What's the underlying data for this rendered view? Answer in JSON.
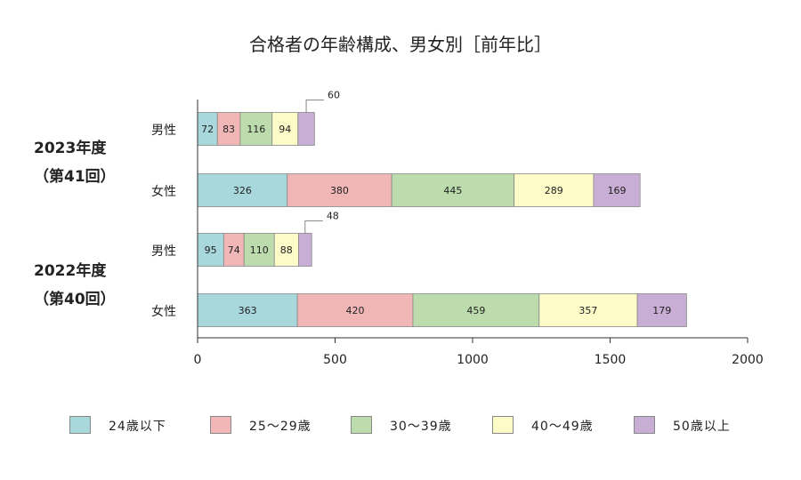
{
  "colors": {
    "axis": "#333333",
    "bar_border": "#888888",
    "text": "#222222"
  },
  "chart_data": {
    "type": "bar",
    "orientation": "horizontal",
    "stacked": true,
    "title": "合格者の年齢構成、男女別［前年比］",
    "xlim": [
      0,
      2000
    ],
    "xticks": [
      0,
      500,
      1000,
      1500,
      2000
    ],
    "grid": false,
    "legend_position": "bottom",
    "groups": [
      {
        "label": "2023年度",
        "sub": "（第41回）"
      },
      {
        "label": "2022年度",
        "sub": "（第40回）"
      }
    ],
    "categories": [
      "男性",
      "女性",
      "男性",
      "女性"
    ],
    "category_group": [
      0,
      0,
      1,
      1
    ],
    "series": [
      {
        "name": "24歳以下",
        "color": "#a9d8dc",
        "values": [
          72,
          326,
          95,
          363
        ]
      },
      {
        "name": "25〜29歳",
        "color": "#f1b7b7",
        "values": [
          83,
          380,
          74,
          420
        ]
      },
      {
        "name": "30〜39歳",
        "color": "#bcdcad",
        "values": [
          116,
          445,
          110,
          459
        ]
      },
      {
        "name": "40〜49歳",
        "color": "#fdfbc8",
        "values": [
          94,
          289,
          88,
          357
        ]
      },
      {
        "name": "50歳以上",
        "color": "#c8aed4",
        "values": [
          60,
          169,
          48,
          179
        ]
      }
    ],
    "callout_labels": [
      {
        "category_index": 0,
        "series_index": 4,
        "text": "60"
      },
      {
        "category_index": 2,
        "series_index": 4,
        "text": "48"
      }
    ]
  }
}
